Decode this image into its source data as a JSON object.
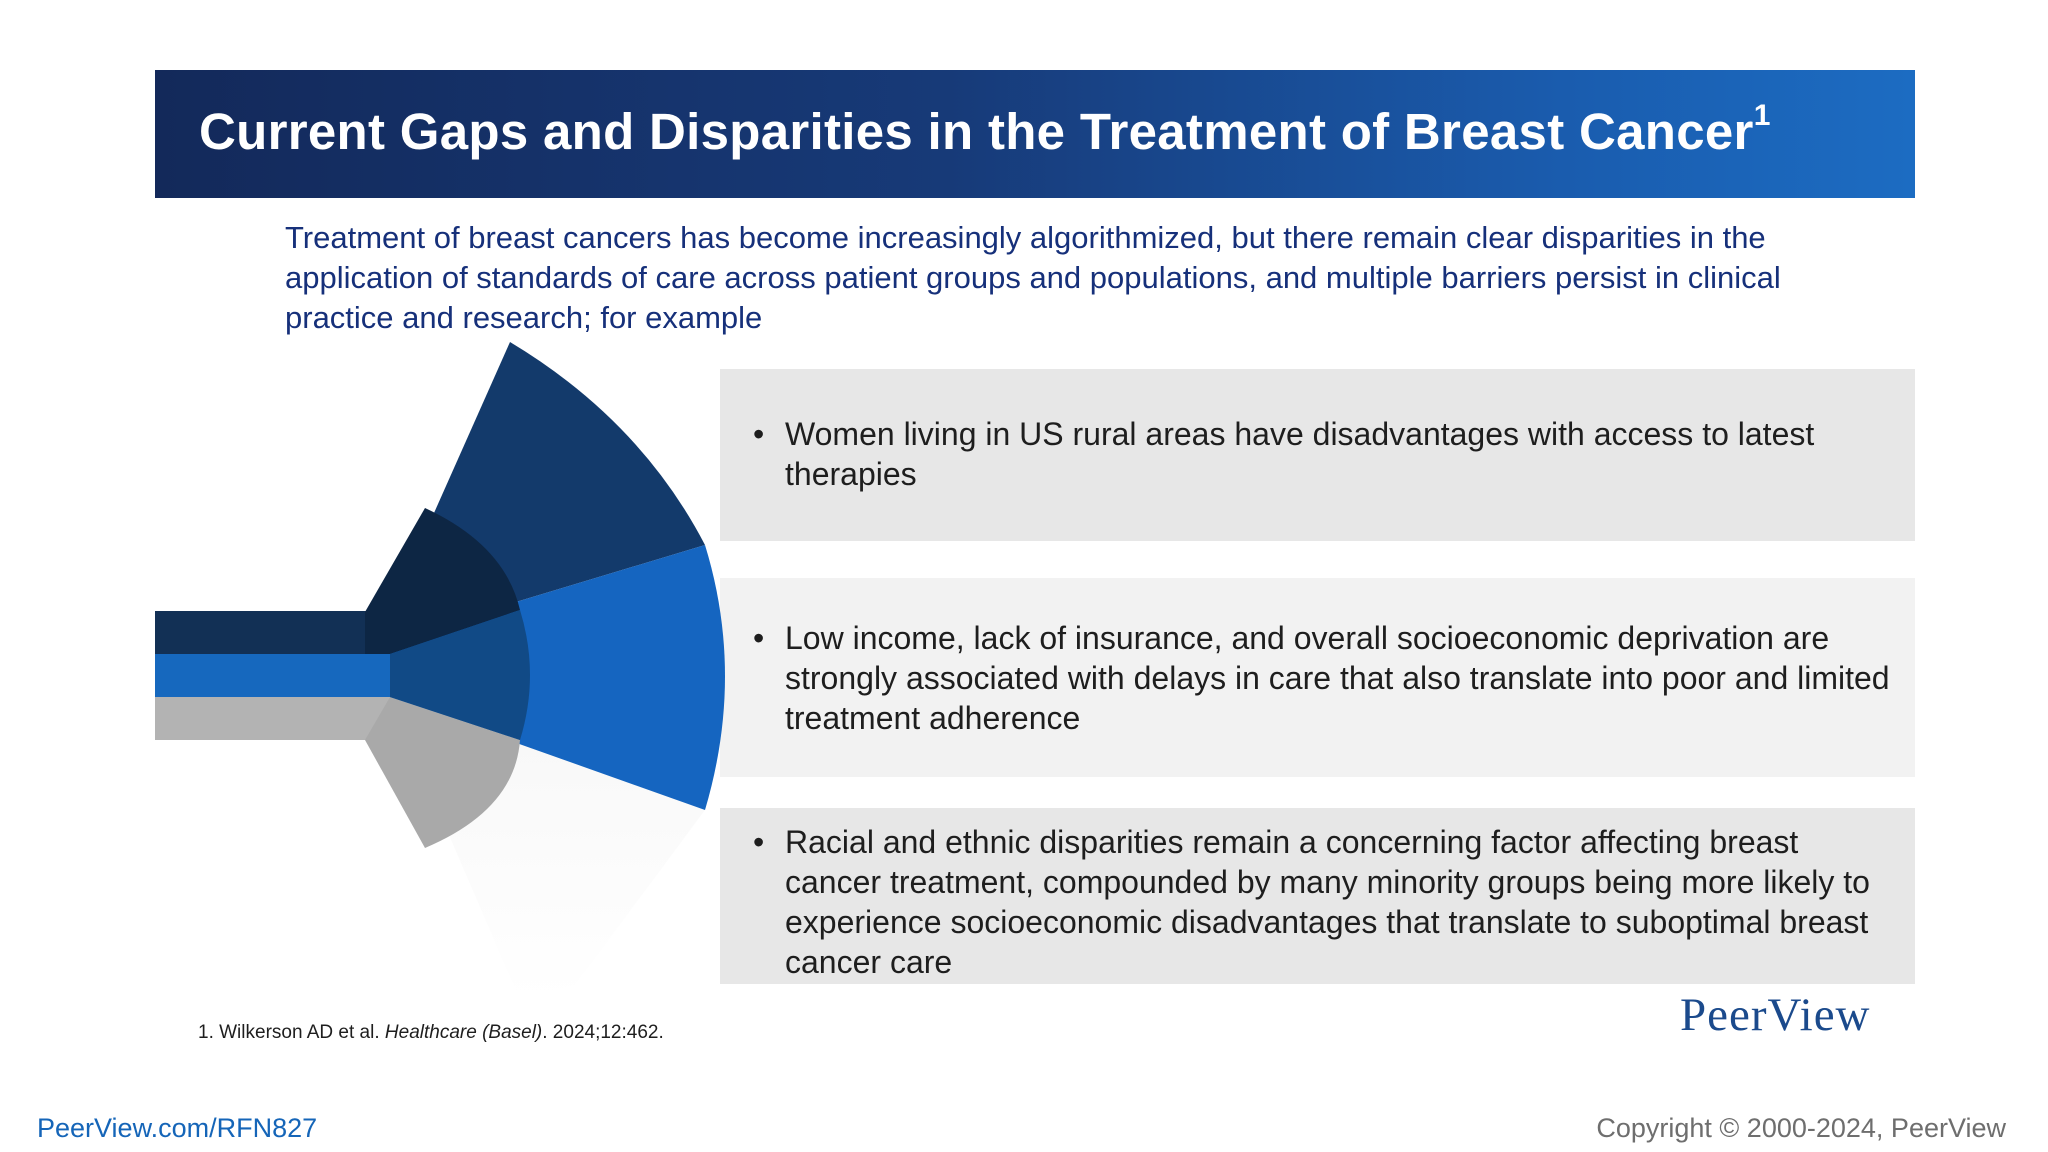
{
  "slide": {
    "title": "Current Gaps and Disparities in the Treatment of Breast Cancer",
    "title_superscript": "1",
    "intro_text": "Treatment of breast cancers has become increasingly algorithmized, but there remain clear disparities in the application of standards of care across patient groups and populations, and multiple barriers persist in clinical practice and research; for example",
    "bullet_symbol": "•",
    "bullets": [
      "Women living in US rural areas have disadvantages with access to latest therapies",
      "Low income, lack of insurance, and overall socioeconomic deprivation are strongly associated with delays in care that also translate into poor and limited treatment adherence",
      "Racial and ethnic disparities remain a concerning factor affecting breast cancer treatment, compounded by many minority groups being more likely to experience socioeconomic disadvantages that translate to suboptimal breast cancer care"
    ],
    "reference": {
      "prefix": "1. Wilkerson AD et al. ",
      "journal": "Healthcare (Basel)",
      "suffix": ". 2024;12:462."
    },
    "logo_text": "PeerView"
  },
  "footer": {
    "url": "PeerView.com/RFN827",
    "copyright": "Copyright © 2000-2024, PeerView"
  },
  "colors": {
    "title_bar_dark": "#13295a",
    "title_bar_light": "#1c6cc2",
    "intro_text": "#16307a",
    "fan_dark": "#123a6e",
    "fan_blue": "#1565c0",
    "fan_gray": "#a9a9a9",
    "panel_gray": "#e7e7e7",
    "logo": "#1b4a8c",
    "url": "#1565b8"
  },
  "icons": {
    "fan_graphic": "three-segment-fan-graphic"
  }
}
